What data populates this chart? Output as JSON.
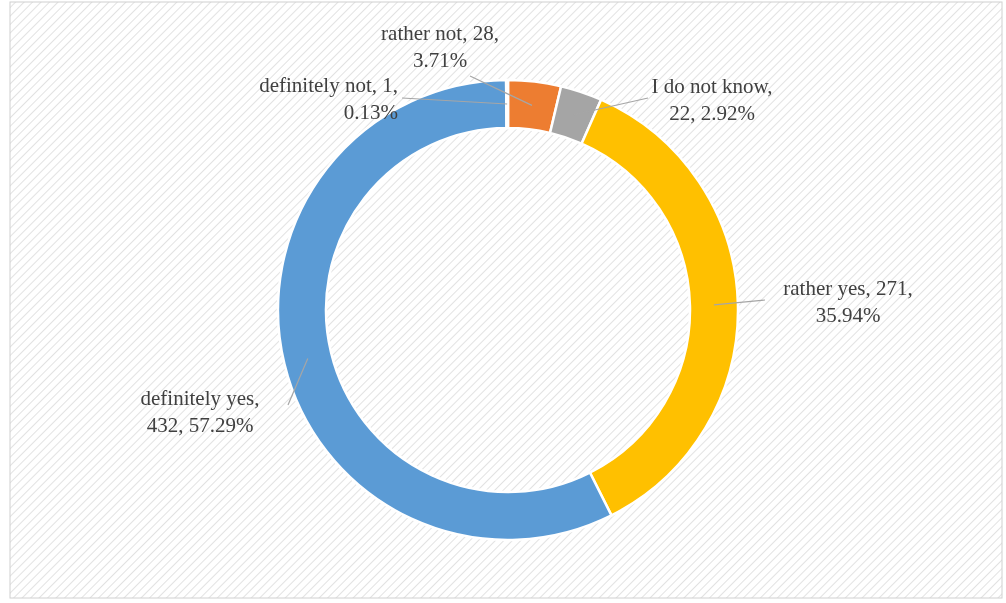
{
  "chart_data": {
    "type": "donut",
    "categories": [
      "rather not",
      "I do not know",
      "rather yes",
      "definitely yes",
      "definitely not"
    ],
    "values": [
      3.71,
      2.92,
      35.94,
      57.29,
      0.13
    ],
    "colors": [
      "#ed7d31",
      "#a5a5a5",
      "#ffc000",
      "#5b9bd5",
      "#4472c4"
    ],
    "value_labels": [
      ", 28, 3.71%",
      ", 22, 2.92%",
      ", 271, 35.94%",
      ", 432, 57.29%",
      ", 1, 0.13%"
    ]
  }
}
